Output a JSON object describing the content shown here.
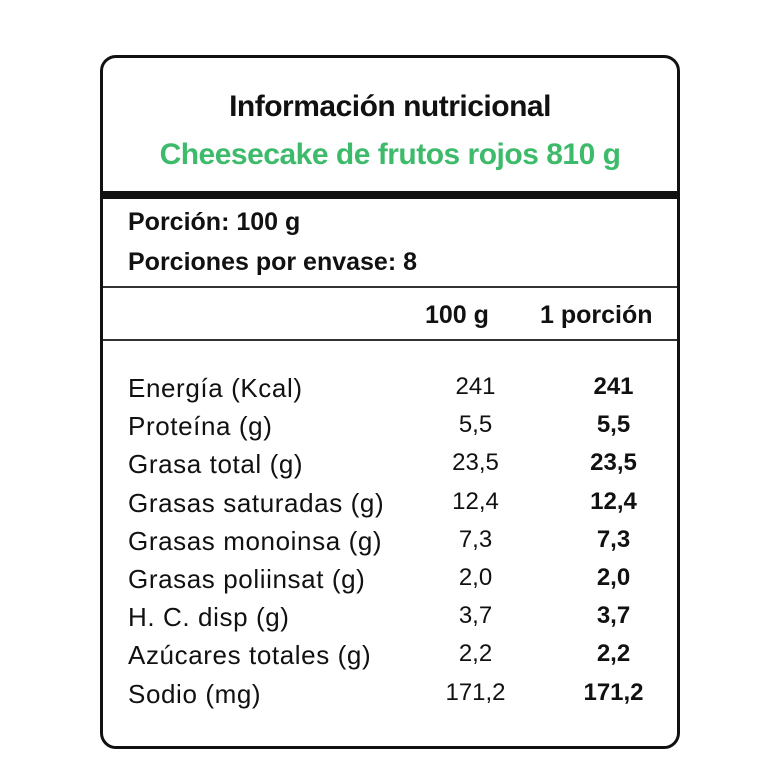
{
  "panel": {
    "title": "Información nutricional",
    "subtitle": "Cheesecake de frutos rojos 810 g",
    "serving": "Porción: 100 g",
    "servings_per_package": "Porciones por envase: 8",
    "columns": [
      "100 g",
      "1 porción"
    ],
    "rows": [
      {
        "label": "Energía (Kcal)",
        "per100": "241",
        "perPortion": "241"
      },
      {
        "label": "Proteína (g)",
        "per100": "5,5",
        "perPortion": "5,5"
      },
      {
        "label": "Grasa total (g)",
        "per100": "23,5",
        "perPortion": "23,5"
      },
      {
        "label": "Grasas saturadas (g)",
        "per100": "12,4",
        "perPortion": "12,4"
      },
      {
        "label": "Grasas monoinsa (g)",
        "per100": "7,3",
        "perPortion": "7,3"
      },
      {
        "label": "Grasas poliinsat (g)",
        "per100": "2,0",
        "perPortion": "2,0"
      },
      {
        "label": "H. C. disp (g)",
        "per100": "3,7",
        "perPortion": "3,7"
      },
      {
        "label": "Azúcares totales (g)",
        "per100": "2,2",
        "perPortion": "2,2"
      },
      {
        "label": "Sodio (mg)",
        "per100": "171,2",
        "perPortion": "171,2"
      }
    ]
  },
  "colors": {
    "text": "#111111",
    "accent": "#3dbb6b",
    "border": "#111111"
  }
}
